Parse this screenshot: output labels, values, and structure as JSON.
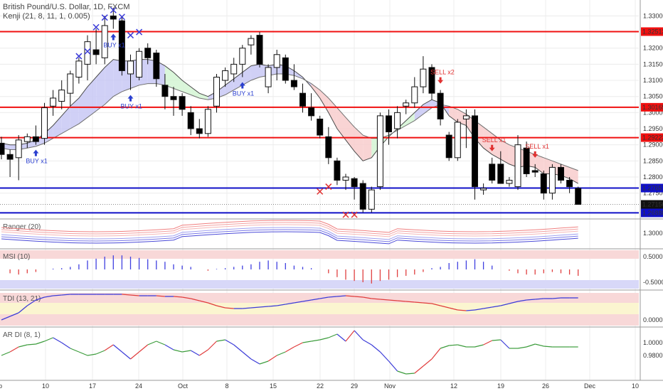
{
  "header": {
    "title": "British Pound/U.S. Dollar, 1D, FXCM",
    "indicator": "Kenji (21, 8, 11, 1, 0.005)"
  },
  "colors": {
    "resistance": "#f01010",
    "support": "#1010c8",
    "bull_fill": "#ffffff",
    "bear_fill": "#000000",
    "cloud_up": "#c8c8f4",
    "cloud_down": "#f8cccc",
    "cloud_green": "#d4f4d4",
    "signal_buy": "#2a3fd0",
    "signal_sell": "#e03030",
    "x_buy": "#3a3ad8",
    "x_sell": "#e03030"
  },
  "chart_data": {
    "type": "candlestick",
    "x_ticks": [
      "ep",
      "10",
      "17",
      "24",
      "Oct",
      "8",
      "15",
      "22",
      "29",
      "Nov",
      "12",
      "19",
      "26",
      "Dec",
      "10"
    ],
    "y_ticks_main": [
      "1.33000",
      "1.32000",
      "1.31500",
      "1.31000",
      "1.30500",
      "1.30000",
      "1.29500",
      "1.29000",
      "1.28500",
      "1.28000",
      "1.27500"
    ],
    "ylim_main": [
      1.2672,
      1.3345
    ],
    "price_lines": [
      {
        "label": "1.32513",
        "value": 1.32513,
        "color": "red"
      },
      {
        "label": "1.30165",
        "value": 1.30165,
        "color": "red"
      },
      {
        "label": "1.29223",
        "value": 1.29223,
        "color": "red"
      },
      {
        "label": "1.27657",
        "value": 1.27657,
        "color": "blue"
      },
      {
        "label": "1.26888",
        "value": 1.26888,
        "color": "blue"
      }
    ],
    "last_price": "1.27150",
    "candles": [
      {
        "o": 1.2905,
        "h": 1.2925,
        "l": 1.2855,
        "c": 1.287
      },
      {
        "o": 1.287,
        "h": 1.2885,
        "l": 1.28,
        "c": 1.2855
      },
      {
        "o": 1.286,
        "h": 1.293,
        "l": 1.279,
        "c": 1.2915
      },
      {
        "o": 1.291,
        "h": 1.2935,
        "l": 1.289,
        "c": 1.2925
      },
      {
        "o": 1.2925,
        "h": 1.296,
        "l": 1.29,
        "c": 1.291
      },
      {
        "o": 1.292,
        "h": 1.303,
        "l": 1.29,
        "c": 1.3015
      },
      {
        "o": 1.302,
        "h": 1.307,
        "l": 1.299,
        "c": 1.3045
      },
      {
        "o": 1.3035,
        "h": 1.31,
        "l": 1.301,
        "c": 1.307
      },
      {
        "o": 1.306,
        "h": 1.313,
        "l": 1.302,
        "c": 1.312
      },
      {
        "o": 1.311,
        "h": 1.317,
        "l": 1.309,
        "c": 1.316
      },
      {
        "o": 1.315,
        "h": 1.324,
        "l": 1.31,
        "c": 1.322
      },
      {
        "o": 1.3195,
        "h": 1.326,
        "l": 1.315,
        "c": 1.318
      },
      {
        "o": 1.317,
        "h": 1.33,
        "l": 1.315,
        "c": 1.327
      },
      {
        "o": 1.33,
        "h": 1.3325,
        "l": 1.326,
        "c": 1.329
      },
      {
        "o": 1.3285,
        "h": 1.33,
        "l": 1.3115,
        "c": 1.313
      },
      {
        "o": 1.312,
        "h": 1.318,
        "l": 1.307,
        "c": 1.316
      },
      {
        "o": 1.311,
        "h": 1.32,
        "l": 1.31,
        "c": 1.319
      },
      {
        "o": 1.32,
        "h": 1.3215,
        "l": 1.315,
        "c": 1.317
      },
      {
        "o": 1.3185,
        "h": 1.3195,
        "l": 1.308,
        "c": 1.3105
      },
      {
        "o": 1.3085,
        "h": 1.312,
        "l": 1.301,
        "c": 1.305
      },
      {
        "o": 1.305,
        "h": 1.308,
        "l": 1.299,
        "c": 1.304
      },
      {
        "o": 1.305,
        "h": 1.306,
        "l": 1.299,
        "c": 1.301
      },
      {
        "o": 1.3,
        "h": 1.302,
        "l": 1.293,
        "c": 1.295
      },
      {
        "o": 1.295,
        "h": 1.298,
        "l": 1.292,
        "c": 1.2935
      },
      {
        "o": 1.2935,
        "h": 1.302,
        "l": 1.2925,
        "c": 1.301
      },
      {
        "o": 1.302,
        "h": 1.312,
        "l": 1.3,
        "c": 1.311
      },
      {
        "o": 1.31,
        "h": 1.314,
        "l": 1.308,
        "c": 1.313
      },
      {
        "o": 1.312,
        "h": 1.317,
        "l": 1.3095,
        "c": 1.315
      },
      {
        "o": 1.315,
        "h": 1.321,
        "l": 1.311,
        "c": 1.32
      },
      {
        "o": 1.321,
        "h": 1.324,
        "l": 1.318,
        "c": 1.323
      },
      {
        "o": 1.324,
        "h": 1.325,
        "l": 1.314,
        "c": 1.315
      },
      {
        "o": 1.308,
        "h": 1.315,
        "l": 1.306,
        "c": 1.314
      },
      {
        "o": 1.314,
        "h": 1.3195,
        "l": 1.31,
        "c": 1.318
      },
      {
        "o": 1.317,
        "h": 1.318,
        "l": 1.309,
        "c": 1.31
      },
      {
        "o": 1.31,
        "h": 1.315,
        "l": 1.307,
        "c": 1.308
      },
      {
        "o": 1.306,
        "h": 1.309,
        "l": 1.3,
        "c": 1.302
      },
      {
        "o": 1.3015,
        "h": 1.306,
        "l": 1.2975,
        "c": 1.299
      },
      {
        "o": 1.298,
        "h": 1.299,
        "l": 1.292,
        "c": 1.293
      },
      {
        "o": 1.2925,
        "h": 1.2955,
        "l": 1.284,
        "c": 1.286
      },
      {
        "o": 1.285,
        "h": 1.286,
        "l": 1.2775,
        "c": 1.279
      },
      {
        "o": 1.279,
        "h": 1.281,
        "l": 1.276,
        "c": 1.28
      },
      {
        "o": 1.2795,
        "h": 1.28,
        "l": 1.273,
        "c": 1.277
      },
      {
        "o": 1.278,
        "h": 1.279,
        "l": 1.269,
        "c": 1.27
      },
      {
        "o": 1.27,
        "h": 1.277,
        "l": 1.269,
        "c": 1.276
      },
      {
        "o": 1.277,
        "h": 1.3,
        "l": 1.276,
        "c": 1.299
      },
      {
        "o": 1.299,
        "h": 1.301,
        "l": 1.29,
        "c": 1.294
      },
      {
        "o": 1.295,
        "h": 1.302,
        "l": 1.292,
        "c": 1.3
      },
      {
        "o": 1.302,
        "h": 1.304,
        "l": 1.2995,
        "c": 1.303
      },
      {
        "o": 1.303,
        "h": 1.311,
        "l": 1.3015,
        "c": 1.308
      },
      {
        "o": 1.308,
        "h": 1.3175,
        "l": 1.306,
        "c": 1.3135
      },
      {
        "o": 1.314,
        "h": 1.315,
        "l": 1.304,
        "c": 1.306
      },
      {
        "o": 1.306,
        "h": 1.307,
        "l": 1.296,
        "c": 1.298
      },
      {
        "o": 1.293,
        "h": 1.294,
        "l": 1.285,
        "c": 1.286
      },
      {
        "o": 1.286,
        "h": 1.298,
        "l": 1.285,
        "c": 1.297
      },
      {
        "o": 1.298,
        "h": 1.301,
        "l": 1.289,
        "c": 1.299
      },
      {
        "o": 1.299,
        "h": 1.301,
        "l": 1.273,
        "c": 1.277
      },
      {
        "o": 1.276,
        "h": 1.278,
        "l": 1.2745,
        "c": 1.2765
      },
      {
        "o": 1.284,
        "h": 1.286,
        "l": 1.278,
        "c": 1.279
      },
      {
        "o": 1.284,
        "h": 1.288,
        "l": 1.278,
        "c": 1.278
      },
      {
        "o": 1.278,
        "h": 1.28,
        "l": 1.277,
        "c": 1.279
      },
      {
        "o": 1.277,
        "h": 1.293,
        "l": 1.276,
        "c": 1.29
      },
      {
        "o": 1.289,
        "h": 1.291,
        "l": 1.28,
        "c": 1.281
      },
      {
        "o": 1.282,
        "h": 1.284,
        "l": 1.28,
        "c": 1.2815
      },
      {
        "o": 1.281,
        "h": 1.282,
        "l": 1.273,
        "c": 1.275
      },
      {
        "o": 1.275,
        "h": 1.284,
        "l": 1.273,
        "c": 1.283
      },
      {
        "o": 1.283,
        "h": 1.284,
        "l": 1.278,
        "c": 1.279
      },
      {
        "o": 1.279,
        "h": 1.28,
        "l": 1.275,
        "c": 1.277
      },
      {
        "o": 1.2765,
        "h": 1.277,
        "l": 1.2715,
        "c": 1.2715
      }
    ],
    "cloud": {
      "fast": [
        1.2905,
        1.29,
        1.29,
        1.2905,
        1.2915,
        1.2935,
        1.296,
        1.299,
        1.302,
        1.3045,
        1.308,
        1.311,
        1.314,
        1.3165,
        1.316,
        1.316,
        1.3165,
        1.3165,
        1.316,
        1.3145,
        1.3125,
        1.31,
        1.308,
        1.306,
        1.305,
        1.3065,
        1.3085,
        1.3105,
        1.3125,
        1.3145,
        1.315,
        1.3145,
        1.315,
        1.3145,
        1.313,
        1.311,
        1.308,
        1.3045,
        1.3,
        1.295,
        1.2915,
        1.288,
        1.285,
        1.286,
        1.2895,
        1.2925,
        1.295,
        1.2975,
        1.3,
        1.3025,
        1.304,
        1.303,
        1.299,
        1.297,
        1.296,
        1.292,
        1.289,
        1.287,
        1.2855,
        1.284,
        1.283,
        1.2835,
        1.283,
        1.281,
        1.281,
        1.2805,
        1.2795,
        1.278
      ],
      "slow": [
        1.289,
        1.2885,
        1.2885,
        1.289,
        1.2895,
        1.2905,
        1.292,
        1.2935,
        1.295,
        1.2965,
        1.2985,
        1.3005,
        1.3025,
        1.305,
        1.3065,
        1.3075,
        1.3085,
        1.309,
        1.309,
        1.3085,
        1.3075,
        1.3065,
        1.3055,
        1.3045,
        1.304,
        1.3045,
        1.3055,
        1.307,
        1.3085,
        1.31,
        1.311,
        1.3115,
        1.312,
        1.312,
        1.3115,
        1.3105,
        1.309,
        1.307,
        1.3045,
        1.3015,
        1.2985,
        1.2955,
        1.293,
        1.292,
        1.292,
        1.293,
        1.2945,
        1.296,
        1.2975,
        1.2995,
        1.3015,
        1.3025,
        1.302,
        1.301,
        1.2995,
        1.2975,
        1.2955,
        1.2935,
        1.2915,
        1.29,
        1.289,
        1.288,
        1.287,
        1.286,
        1.285,
        1.284,
        1.283,
        1.282
      ]
    },
    "signals": [
      {
        "label": "BUY x1",
        "type": "buy",
        "i": 4
      },
      {
        "label": "BUY x1",
        "type": "buy",
        "i": 13
      },
      {
        "label": "BUY x1",
        "type": "buy",
        "i": 15
      },
      {
        "label": "BUY x1",
        "type": "buy",
        "i": 28
      },
      {
        "label": "SELL x2",
        "type": "sell",
        "i": 51
      },
      {
        "label": "SELL x1",
        "type": "sell",
        "i": 57
      },
      {
        "label": "SELL x1",
        "type": "sell",
        "i": 62
      }
    ],
    "x_marks": [
      {
        "type": "buy",
        "i": 9,
        "p": 1.3175
      },
      {
        "type": "buy",
        "i": 10,
        "p": 1.319
      },
      {
        "type": "buy",
        "i": 11,
        "p": 1.3265
      },
      {
        "type": "buy",
        "i": 12,
        "p": 1.3295
      },
      {
        "type": "buy",
        "i": 13,
        "p": 1.3318
      },
      {
        "type": "buy",
        "i": 14,
        "p": 1.3297
      },
      {
        "type": "buy",
        "i": 15,
        "p": 1.324
      },
      {
        "type": "buy",
        "i": 16,
        "p": 1.325
      },
      {
        "type": "sell",
        "i": 37,
        "p": 1.2755
      },
      {
        "type": "sell",
        "i": 38,
        "p": 1.277
      },
      {
        "type": "sell",
        "i": 40,
        "p": 1.2683
      },
      {
        "type": "sell",
        "i": 41,
        "p": 1.2683
      }
    ],
    "ranger": {
      "label": "Ranger (20)",
      "y_ticks": [
        "1.3000"
      ]
    },
    "msi": {
      "label": "MSI (10)",
      "y_ticks": [
        "0.5000",
        "-0.5000"
      ],
      "values": [
        0,
        -0.15,
        -0.2,
        -0.15,
        -0.1,
        0,
        0.03,
        0.05,
        0.1,
        0.2,
        0.35,
        0.42,
        0.5,
        0.55,
        0.55,
        0.5,
        0.45,
        0.4,
        0.35,
        0.3,
        0.2,
        0.15,
        0.1,
        0,
        -0.05,
        0.02,
        0.05,
        0.1,
        0.15,
        0.2,
        0.3,
        0.35,
        0.3,
        0.25,
        0.15,
        0.1,
        0.05,
        0,
        -0.15,
        -0.3,
        -0.4,
        -0.45,
        -0.5,
        -0.55,
        -0.45,
        -0.4,
        -0.3,
        -0.25,
        -0.2,
        -0.1,
        0.05,
        0.1,
        0.25,
        0.3,
        0.35,
        0.4,
        0.3,
        0.15,
        0,
        -0.05,
        -0.15,
        -0.2,
        -0.2,
        -0.15,
        -0.1,
        -0.15,
        -0.2,
        -0.25
      ]
    },
    "tdi": {
      "label": "TDI (13, 21)",
      "y_ticks": [
        "0.0000"
      ]
    },
    "ardi": {
      "label": "AR DI (8, 1)",
      "y_ticks": [
        "1.0000",
        "0.9800"
      ]
    }
  }
}
